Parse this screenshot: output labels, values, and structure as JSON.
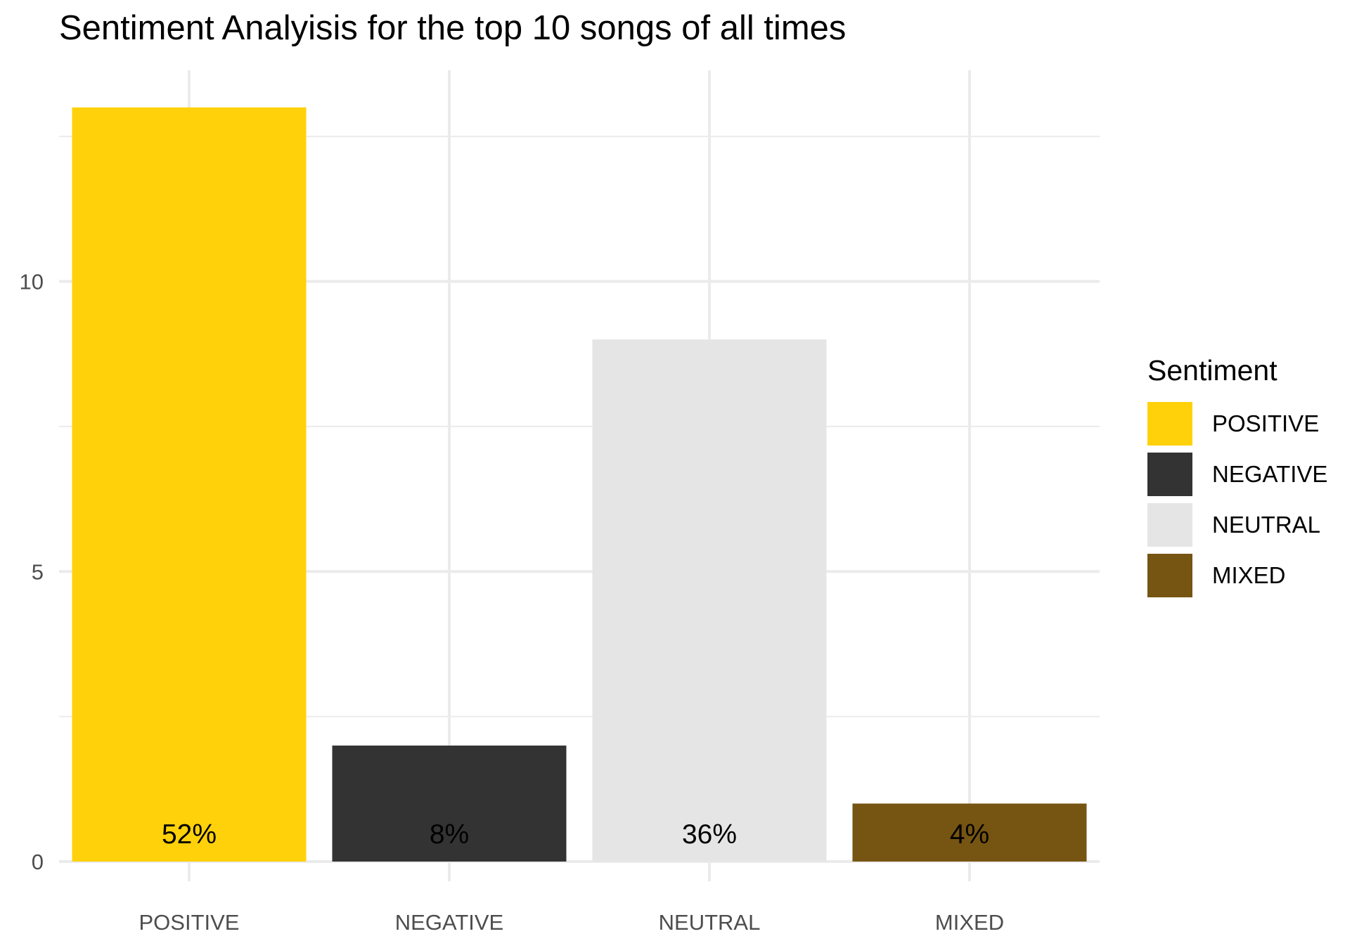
{
  "chart_data": {
    "type": "bar",
    "title": "Sentiment Analyisis for the top 10 songs of all times",
    "xlabel": "",
    "ylabel": "",
    "categories": [
      "POSITIVE",
      "NEGATIVE",
      "NEUTRAL",
      "MIXED"
    ],
    "values": [
      13,
      2,
      9,
      1
    ],
    "bar_labels": [
      "52%",
      "8%",
      "36%",
      "4%"
    ],
    "colors": [
      "#FFD10A",
      "#333333",
      "#E5E5E5",
      "#765512"
    ],
    "ylim": [
      0,
      13.65
    ],
    "y_ticks": [
      0,
      5,
      10
    ],
    "y_tick_labels": [
      "0",
      "5",
      "10"
    ],
    "grid": true,
    "legend": {
      "title": "Sentiment",
      "position": "right",
      "entries": [
        "POSITIVE",
        "NEGATIVE",
        "NEUTRAL",
        "MIXED"
      ]
    }
  }
}
